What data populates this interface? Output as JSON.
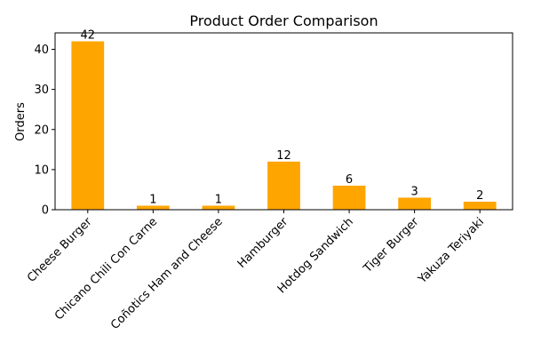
{
  "chart_data": {
    "type": "bar",
    "title": "Product Order Comparison",
    "xlabel": "",
    "ylabel": "Orders",
    "categories": [
      "Cheese Burger",
      "Chicano Chili Con Carne",
      "Coñotics Ham and Cheese",
      "Hamburger",
      "Hotdog Sandwich",
      "Tiger Burger",
      "Yakuza Teriyaki"
    ],
    "values": [
      42,
      1,
      1,
      12,
      6,
      3,
      2
    ],
    "ylim": [
      0,
      44.1
    ],
    "yticks": [
      0,
      10,
      20,
      30,
      40
    ],
    "bar_color": "#ffa500",
    "grid": false,
    "legend": false,
    "data_labels": true
  }
}
